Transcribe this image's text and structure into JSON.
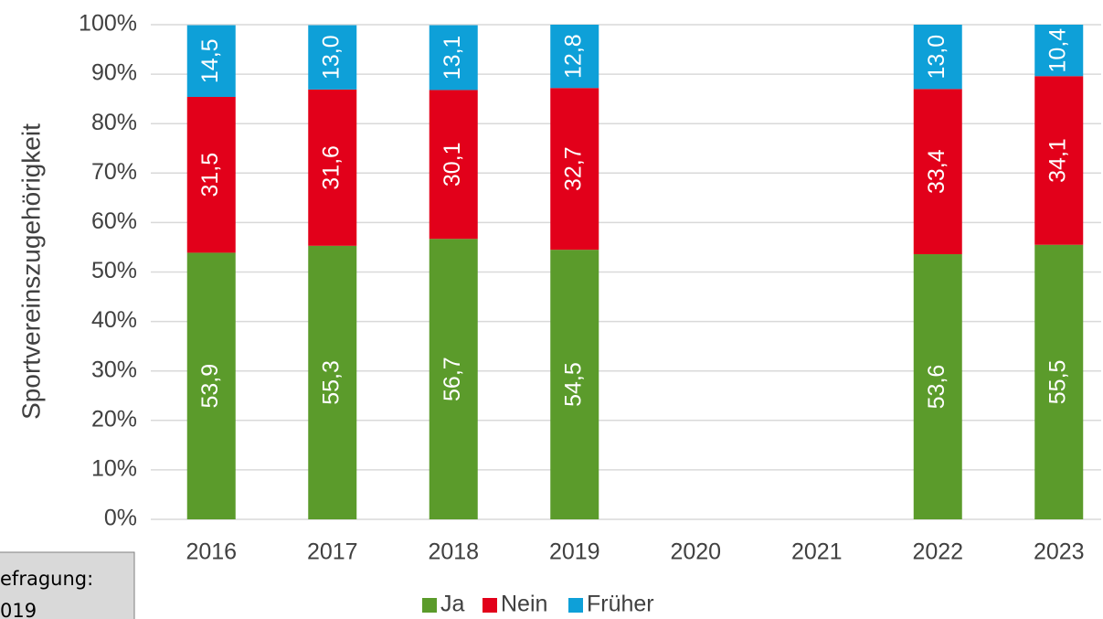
{
  "chart_data": {
    "type": "stacked_bar",
    "y_label": "Sportvereinszugehörigkeit",
    "categories": [
      "2016",
      "2017",
      "2018",
      "2019",
      "2020",
      "2021",
      "2022",
      "2023"
    ],
    "series": [
      {
        "name": "Ja",
        "color": "#5b9b2b",
        "values": [
          53.9,
          55.3,
          56.7,
          54.5,
          null,
          null,
          53.6,
          55.5
        ],
        "value_labels": [
          "53,9",
          "55,3",
          "56,7",
          "54,5",
          null,
          null,
          "53,6",
          "55,5"
        ]
      },
      {
        "name": "Nein",
        "color": "#e2001a",
        "values": [
          31.5,
          31.6,
          30.1,
          32.7,
          null,
          null,
          33.4,
          34.1
        ],
        "value_labels": [
          "31,5",
          "31,6",
          "30,1",
          "32,7",
          null,
          null,
          "33,4",
          "34,1"
        ]
      },
      {
        "name": "Früher",
        "color": "#0ea0d8",
        "values": [
          14.5,
          13.0,
          13.1,
          12.8,
          null,
          null,
          13.0,
          10.4
        ],
        "value_labels": [
          "14,5",
          "13,0",
          "13,1",
          "12,8",
          null,
          null,
          "13,0",
          "10,4"
        ]
      }
    ],
    "ylim": [
      0,
      100
    ],
    "yticks": [
      {
        "value": 0,
        "label": "0%"
      },
      {
        "value": 10,
        "label": "10%"
      },
      {
        "value": 20,
        "label": "20%"
      },
      {
        "value": 30,
        "label": "30%"
      },
      {
        "value": 40,
        "label": "40%"
      },
      {
        "value": 50,
        "label": "50%"
      },
      {
        "value": 60,
        "label": "60%"
      },
      {
        "value": 70,
        "label": "70%"
      },
      {
        "value": 80,
        "label": "80%"
      },
      {
        "value": 90,
        "label": "90%"
      },
      {
        "value": 100,
        "label": "100%"
      }
    ],
    "grid": true,
    "legend": "bottom",
    "annotation": [
      "efragung:",
      "019"
    ]
  }
}
